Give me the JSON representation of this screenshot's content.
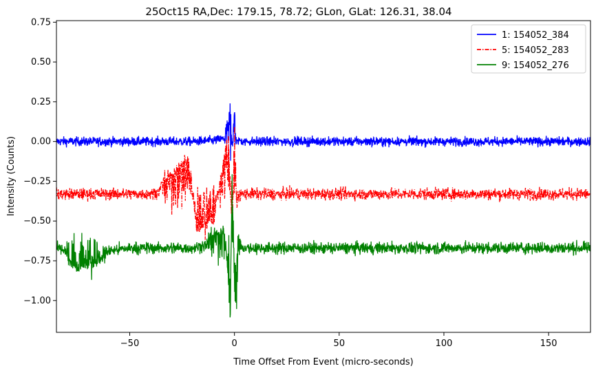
{
  "chart_data": {
    "type": "line",
    "title": "25Oct15 RA,Dec:  179.15,  78.72; GLon, GLat:  126.31,  38.04",
    "xlabel": "Time Offset From Event (micro-seconds)",
    "ylabel": "Intensity (Counts)",
    "xlim": [
      -85,
      170
    ],
    "ylim": [
      -1.2,
      0.76
    ],
    "xticks": [
      -50,
      0,
      50,
      100,
      150
    ],
    "xtick_labels": [
      "−50",
      "0",
      "50",
      "100",
      "150"
    ],
    "yticks": [
      0.75,
      0.5,
      0.25,
      0.0,
      -0.25,
      -0.5,
      -0.75,
      -1.0
    ],
    "ytick_labels": [
      "0.75",
      "0.50",
      "0.25",
      "0.00",
      "−0.25",
      "−0.50",
      "−0.75",
      "−1.00"
    ],
    "grid": false,
    "legend_position": "top-right",
    "series": [
      {
        "name": "1: 154052_384",
        "color": "#0000ff",
        "style": "solid",
        "baseline": 0.0,
        "noise_amplitude": 0.035,
        "x": [
          -85,
          -60,
          -40,
          -20,
          -10,
          -5,
          -3,
          -2,
          -1,
          0,
          1,
          2,
          5,
          10,
          50,
          100,
          150,
          170
        ],
        "y": [
          0.0,
          0.0,
          0.0,
          0.0,
          0.02,
          0.05,
          0.1,
          0.27,
          -0.05,
          0.2,
          -0.03,
          0.02,
          0.0,
          0.0,
          0.0,
          0.0,
          0.0,
          0.0
        ]
      },
      {
        "name": "5: 154052_283",
        "color": "#ff0000",
        "style": "dashdot",
        "baseline": -0.33,
        "noise_amplitude": 0.045,
        "x": [
          -85,
          -60,
          -40,
          -22,
          -18,
          -10,
          -5,
          -3,
          -1,
          0,
          1,
          3,
          10,
          50,
          100,
          150,
          170
        ],
        "y": [
          -0.33,
          -0.33,
          -0.33,
          -0.1,
          -0.55,
          -0.5,
          -0.1,
          0.05,
          -0.6,
          0.15,
          -0.4,
          -0.33,
          -0.33,
          -0.33,
          -0.33,
          -0.33,
          -0.33
        ]
      },
      {
        "name": "9: 154052_276",
        "color": "#008000",
        "style": "solid",
        "baseline": -0.67,
        "noise_amplitude": 0.045,
        "x": [
          -85,
          -75,
          -50,
          -20,
          -5,
          -3,
          -2,
          -1,
          0,
          1,
          2,
          5,
          10,
          50,
          100,
          150,
          170
        ],
        "y": [
          -0.67,
          -0.8,
          -0.67,
          -0.67,
          -0.55,
          -0.85,
          -1.13,
          -0.1,
          -0.95,
          -1.05,
          -0.6,
          -0.67,
          -0.67,
          -0.67,
          -0.67,
          -0.67,
          -0.67
        ]
      }
    ]
  }
}
